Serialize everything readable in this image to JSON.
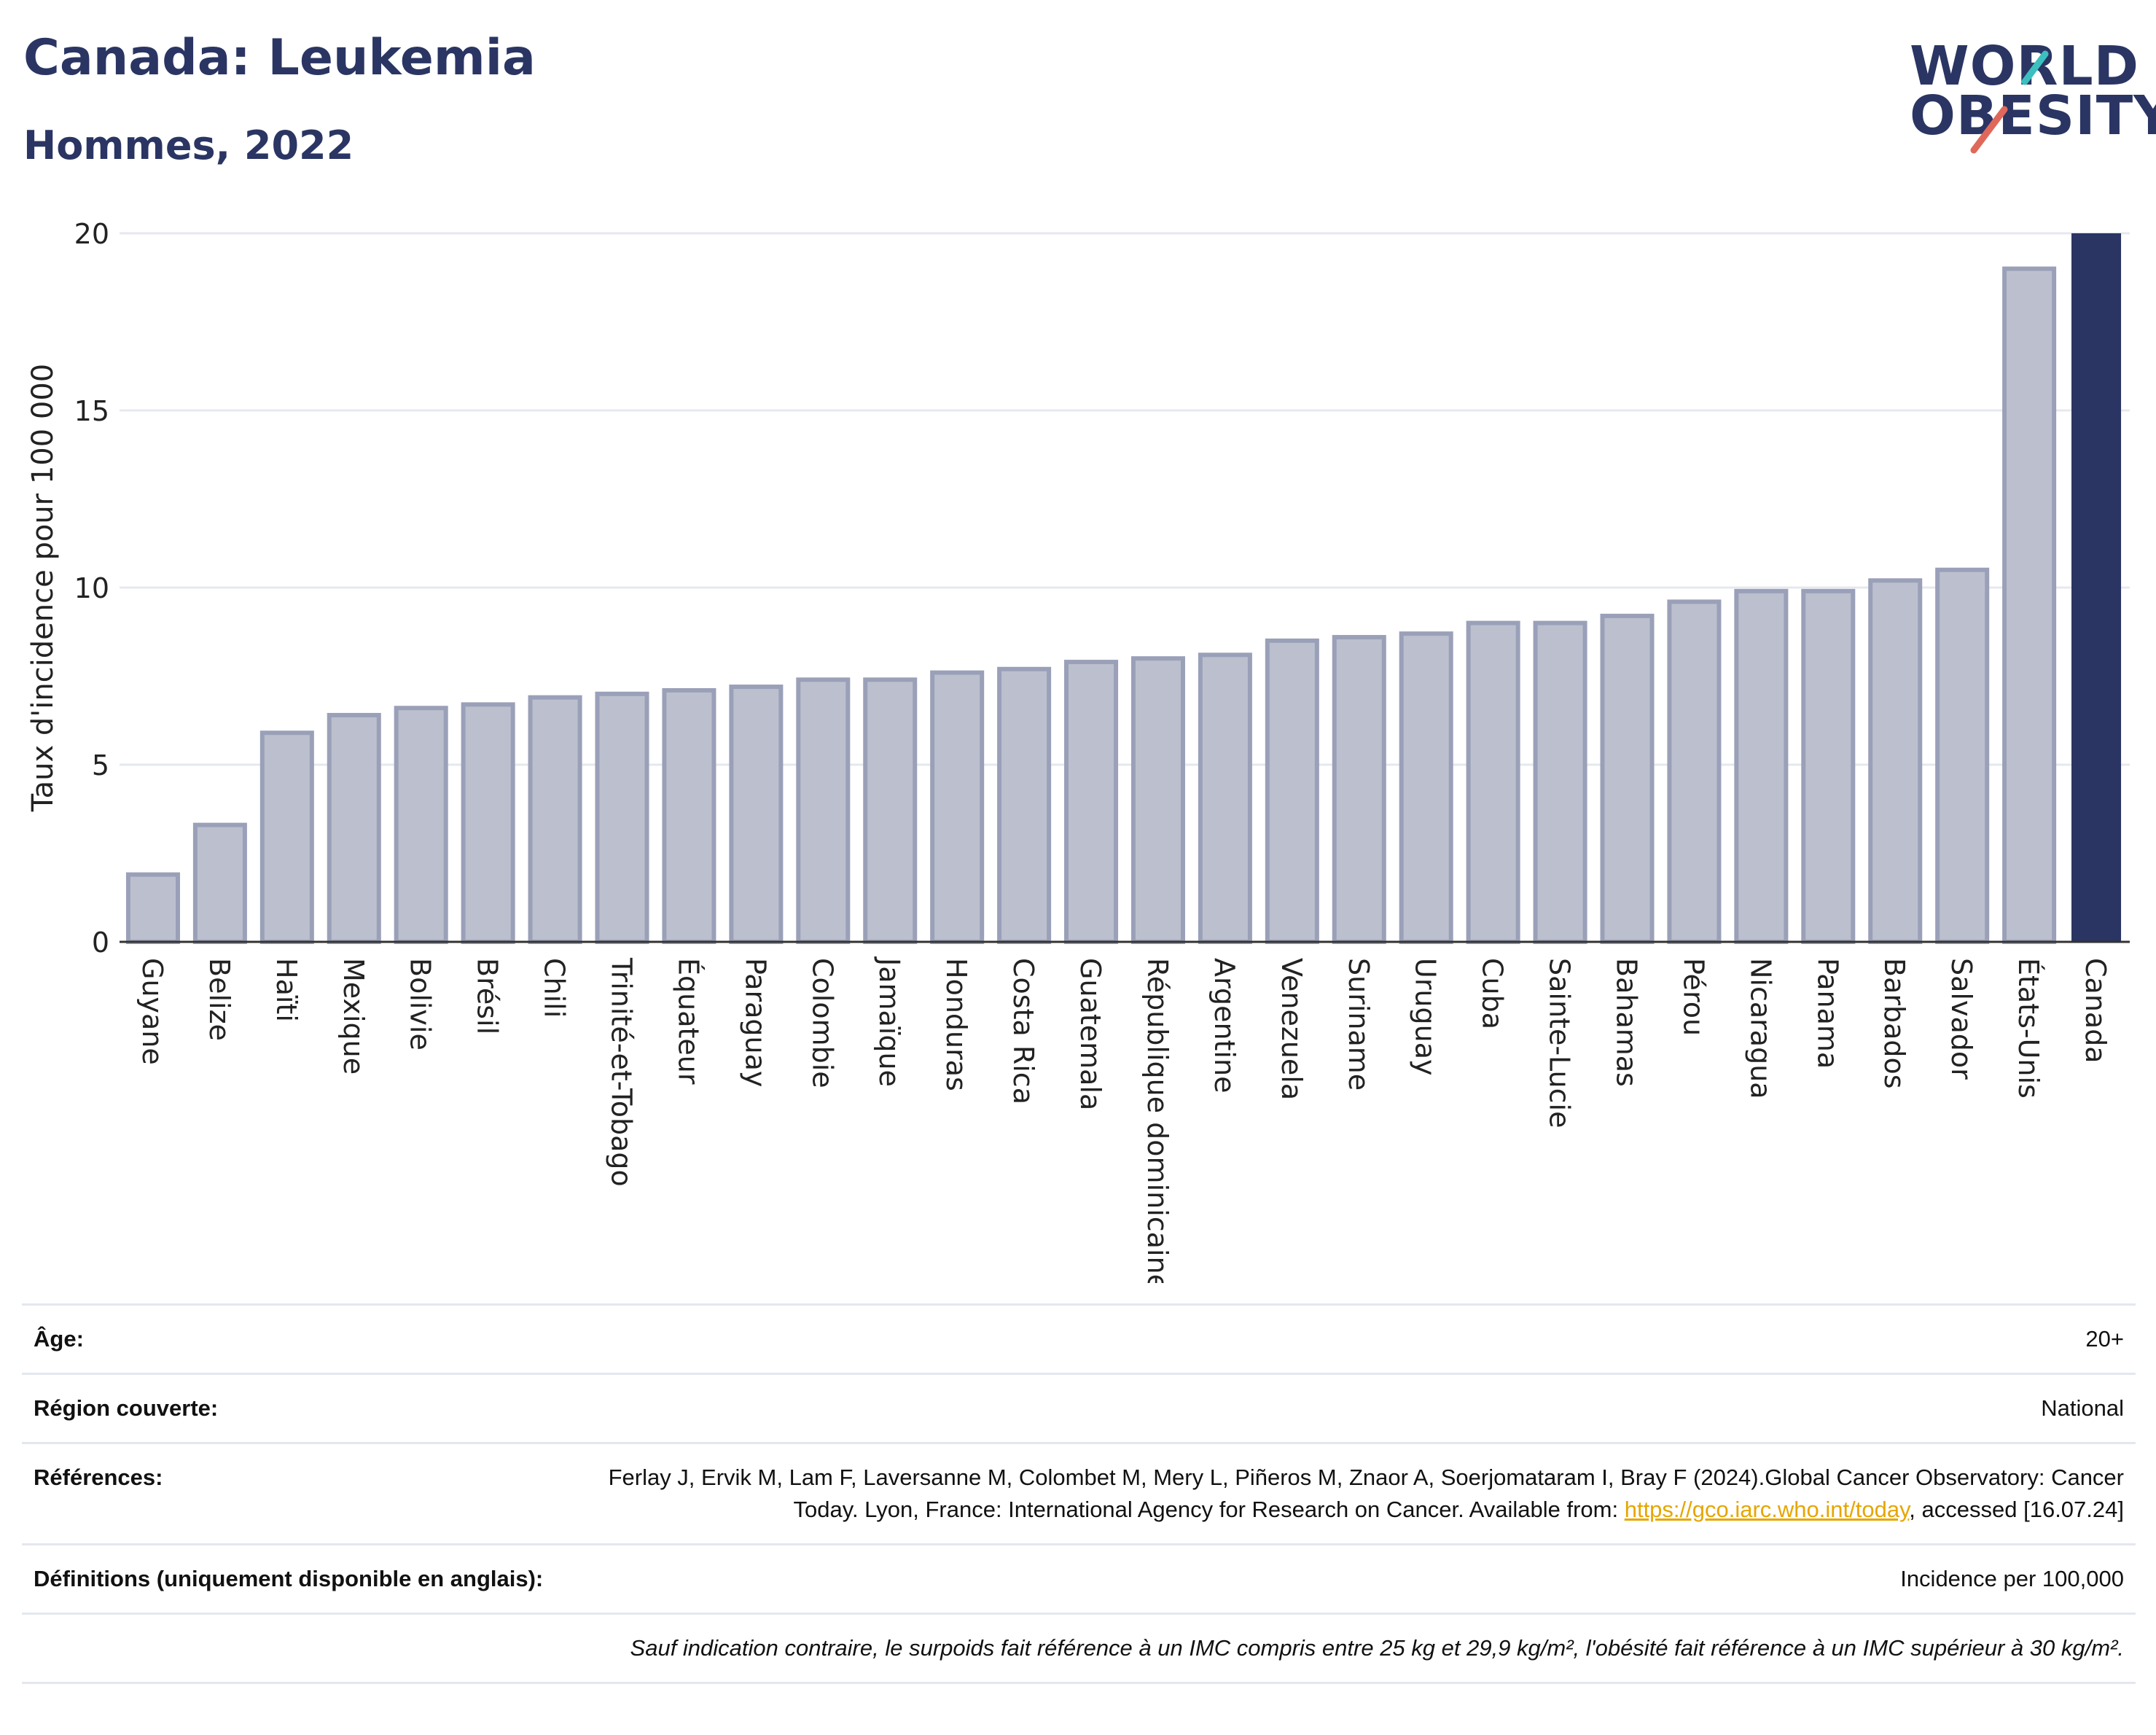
{
  "header": {
    "title": "Canada: Leukemia",
    "subtitle": "Hommes, 2022",
    "logo_line1": "WORLD",
    "logo_line2": "OBESITY"
  },
  "colors": {
    "bar_fill": "#bcc0ce",
    "bar_stroke": "#9aa0b8",
    "highlight": "#2a3563",
    "title": "#2a3563",
    "grid": "#e6e8ef",
    "logo_teal": "#3bbfbf",
    "logo_coral": "#e0685a",
    "link": "#e6a600"
  },
  "chart_data": {
    "type": "bar",
    "title": "Canada: Leukemia",
    "subtitle": "Hommes, 2022",
    "ylabel": "Taux d'incidence pour 100 000",
    "xlabel": "",
    "ylim": [
      0,
      20
    ],
    "yticks": [
      0,
      5,
      10,
      15,
      20
    ],
    "grid": true,
    "highlight_category": "Canada",
    "categories": [
      "Guyane",
      "Belize",
      "Haïti",
      "Mexique",
      "Bolivie",
      "Brésil",
      "Chili",
      "Trinité-et-Tobago",
      "Équateur",
      "Paraguay",
      "Colombie",
      "Jamaïque",
      "Honduras",
      "Costa Rica",
      "Guatemala",
      "République dominicaine",
      "Argentine",
      "Venezuela",
      "Suriname",
      "Uruguay",
      "Cuba",
      "Sainte-Lucie",
      "Bahamas",
      "Pérou",
      "Nicaragua",
      "Panama",
      "Barbados",
      "Salvador",
      "États-Unis",
      "Canada"
    ],
    "values": [
      1.9,
      3.3,
      5.9,
      6.4,
      6.6,
      6.7,
      6.9,
      7.0,
      7.1,
      7.2,
      7.4,
      7.4,
      7.6,
      7.7,
      7.9,
      8.0,
      8.1,
      8.5,
      8.6,
      8.7,
      9.0,
      9.0,
      9.2,
      9.6,
      9.9,
      9.9,
      10.2,
      10.5,
      19.0,
      20.0
    ]
  },
  "meta": {
    "age_label": "Âge:",
    "age_value": "20+",
    "region_label": "Région couverte:",
    "region_value": "National",
    "references_label": "Références:",
    "references_text": "Ferlay J, Ervik M, Lam F, Laversanne M, Colombet M, Mery L, Piñeros M, Znaor A, Soerjomataram I, Bray F (2024).Global Cancer Observatory: Cancer Today. Lyon, France: International Agency for Research on Cancer. Available from: ",
    "references_link": "https://gco.iarc.who.int/today",
    "references_tail": ", accessed [16.07.24]",
    "definitions_label": "Définitions (uniquement disponible en anglais):",
    "definitions_value": "Incidence per 100,000",
    "footnote": "Sauf indication contraire, le surpoids fait référence à un IMC compris entre 25 kg et 29,9 kg/m², l'obésité fait référence à un IMC supérieur à 30 kg/m²."
  }
}
